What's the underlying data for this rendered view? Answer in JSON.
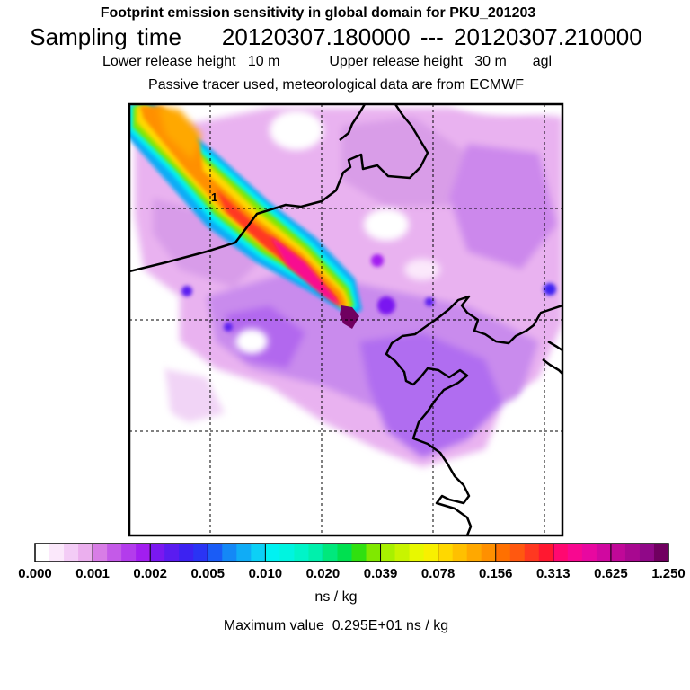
{
  "header": {
    "title": "Footprint emission sensitivity in global domain for PKU_201203",
    "sampling_label": "Sampling time",
    "sampling_start": "20120307.180000",
    "sampling_sep": "---",
    "sampling_end": "20120307.210000",
    "lower_label": "Lower release height",
    "lower_value": "10 m",
    "upper_label": "Upper release height",
    "upper_value": "30 m",
    "upper_ref": "agl",
    "note": "Passive tracer used, meteorological data are from ECMWF"
  },
  "map": {
    "release_marker": "1",
    "colors": {
      "coast": "#000000",
      "grid": "#000000",
      "frame": "#000000"
    }
  },
  "colorbar": {
    "labels": [
      "0.000",
      "0.001",
      "0.002",
      "0.005",
      "0.010",
      "0.020",
      "0.039",
      "0.078",
      "0.156",
      "0.313",
      "0.625",
      "1.250"
    ],
    "colors": [
      [
        "#ffffff",
        "#fbe8fb",
        "#f3ccf6",
        "#ebafee"
      ],
      [
        "#d87de6",
        "#c45ae8",
        "#b33cec",
        "#a21ef0"
      ],
      [
        "#7a18f0",
        "#5a1cf0",
        "#3c22f2",
        "#2a34f4"
      ],
      [
        "#1a5cf6",
        "#1488f6",
        "#10acf6",
        "#0cd0f6"
      ],
      [
        "#00f2f2",
        "#00f4e0",
        "#00f4c8",
        "#00f0ac"
      ],
      [
        "#00e87c",
        "#00e050",
        "#30e010",
        "#80e800"
      ],
      [
        "#a8f000",
        "#c8f400",
        "#e8f800",
        "#f8f000"
      ],
      [
        "#ffd800",
        "#ffc000",
        "#ffa800",
        "#ff9000"
      ],
      [
        "#ff7000",
        "#ff5810",
        "#ff3820",
        "#ff1830"
      ],
      [
        "#ff0870",
        "#f80890",
        "#e808a0",
        "#d008a0"
      ],
      [
        "#c00898",
        "#a80890",
        "#900888",
        "#700060"
      ]
    ]
  },
  "footer": {
    "unit": "ns / kg",
    "max_label": "Maximum value",
    "max_value": "0.295E+01 ns / kg"
  }
}
